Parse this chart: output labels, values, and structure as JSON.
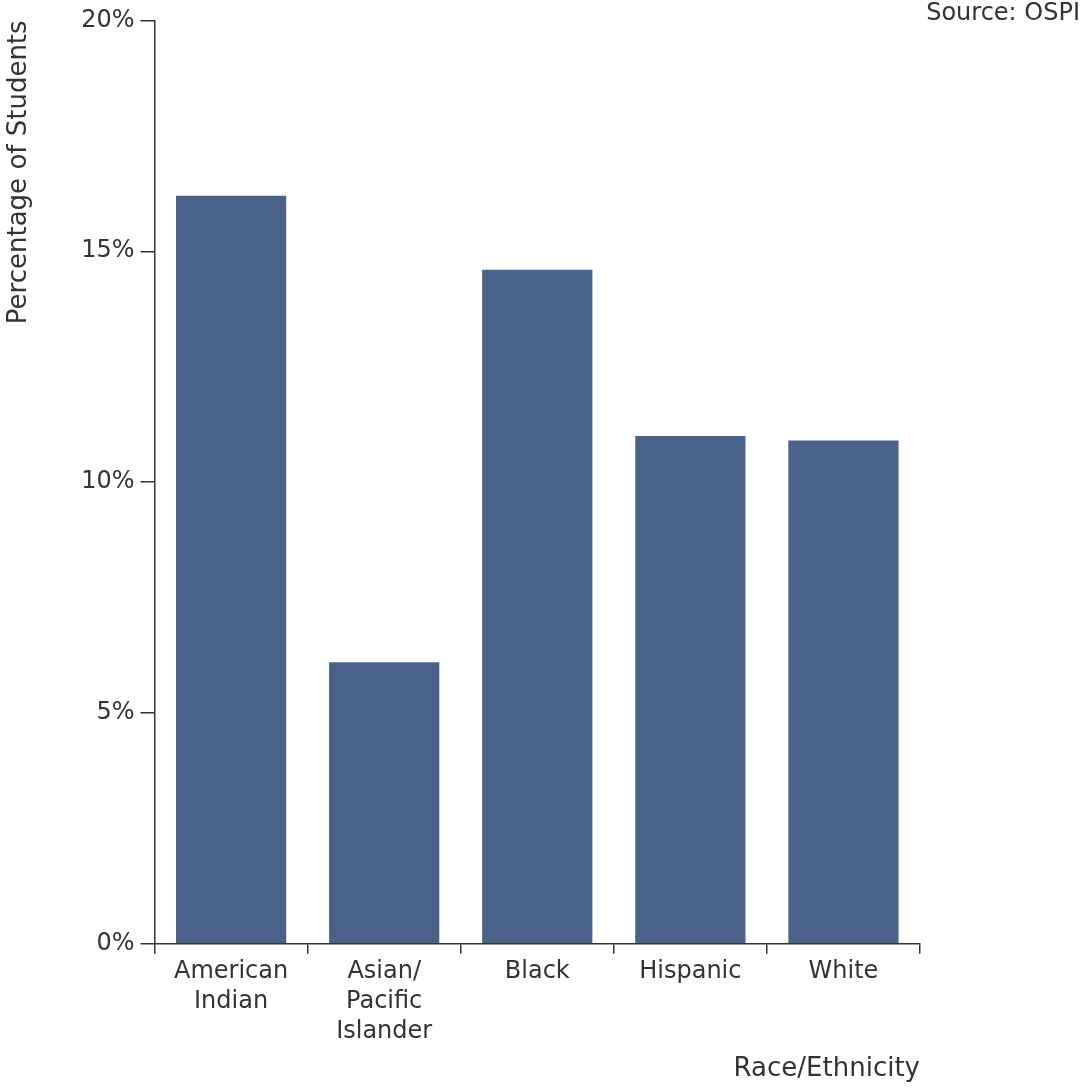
{
  "chart_data": {
    "type": "bar",
    "xlabel": "Race/Ethnicity",
    "ylabel": "Percentage of Students",
    "annotations": [
      "Source: OSPI"
    ],
    "categories": [
      "American Indian",
      "Asian/Pacific Islander",
      "Black",
      "Hispanic",
      "White"
    ],
    "values": [
      16.2,
      6.1,
      14.6,
      11.0,
      10.9
    ],
    "color": "#4a6189",
    "ylim": [
      0,
      20
    ],
    "yticks": [
      {
        "value": 0,
        "label": "0%"
      },
      {
        "value": 5,
        "label": "5%"
      },
      {
        "value": 10,
        "label": "10%"
      },
      {
        "value": 15,
        "label": "15%"
      },
      {
        "value": 20,
        "label": "20%"
      }
    ],
    "grid": false,
    "legend": false
  }
}
